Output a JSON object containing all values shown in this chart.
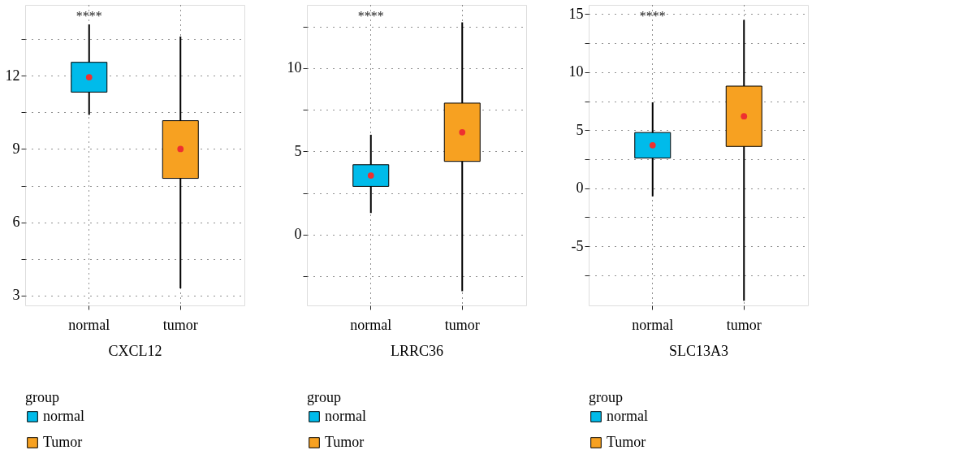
{
  "chart_data": [
    {
      "type": "box",
      "xlabel": "CXCL12",
      "categories": [
        "normal",
        "tumor"
      ],
      "ylim": [
        2.6,
        14.9
      ],
      "yticks": [
        3,
        {
          "value": 4.5,
          "label": null
        },
        6,
        {
          "value": 7.5,
          "label": null
        },
        9,
        {
          "value": 10.5,
          "label": null
        },
        12,
        {
          "value": 13.5,
          "label": null
        }
      ],
      "grid": true,
      "legend": "bottom",
      "legend_title": "group",
      "annotations": [
        "****"
      ],
      "series": [
        {
          "name": "normal",
          "color": "#00bbea",
          "x": [
            "normal"
          ],
          "boxes": [
            {
              "low": 10.4,
              "q1": 11.33,
              "median": 11.94,
              "q3": 12.55,
              "high": 14.1
            }
          ]
        },
        {
          "name": "Tumor",
          "color": "#f7a121",
          "x": [
            "tumor"
          ],
          "boxes": [
            {
              "low": 3.3,
              "q1": 7.8,
              "median": 9.0,
              "q3": 10.16,
              "high": 13.6
            }
          ]
        }
      ]
    },
    {
      "type": "box",
      "xlabel": "LRRC36",
      "categories": [
        "normal",
        "tumor"
      ],
      "ylim": [
        -4.25,
        13.8
      ],
      "yticks": [
        {
          "value": -2.5,
          "label": null
        },
        0,
        {
          "value": 2.5,
          "label": null
        },
        5,
        {
          "value": 7.5,
          "label": null
        },
        10,
        {
          "value": 12.5,
          "label": null
        }
      ],
      "grid": true,
      "legend": "bottom",
      "legend_title": "group",
      "annotations": [
        "****"
      ],
      "series": [
        {
          "name": "normal",
          "color": "#00bbea",
          "x": [
            "normal"
          ],
          "boxes": [
            {
              "low": 1.3,
              "q1": 2.9,
              "median": 3.55,
              "q3": 4.2,
              "high": 6.0
            }
          ]
        },
        {
          "name": "Tumor",
          "color": "#f7a121",
          "x": [
            "tumor"
          ],
          "boxes": [
            {
              "low": -3.4,
              "q1": 4.4,
              "median": 6.15,
              "q3": 7.9,
              "high": 12.75
            }
          ]
        }
      ]
    },
    {
      "type": "box",
      "xlabel": "SLC13A3",
      "categories": [
        "normal",
        "tumor"
      ],
      "ylim": [
        -10.1,
        15.8
      ],
      "yticks": [
        {
          "value": -7.5,
          "label": null
        },
        -5,
        {
          "value": -2.5,
          "label": null
        },
        0,
        {
          "value": 2.5,
          "label": null
        },
        5,
        {
          "value": 7.5,
          "label": null
        },
        10,
        {
          "value": 12.5,
          "label": null
        },
        15
      ],
      "grid": true,
      "legend": "bottom",
      "legend_title": "group",
      "annotations": [
        "****"
      ],
      "series": [
        {
          "name": "normal",
          "color": "#00bbea",
          "x": [
            "normal"
          ],
          "boxes": [
            {
              "low": -0.7,
              "q1": 2.6,
              "median": 3.7,
              "q3": 4.8,
              "high": 7.4
            }
          ]
        },
        {
          "name": "Tumor",
          "color": "#f7a121",
          "x": [
            "tumor"
          ],
          "boxes": [
            {
              "low": -9.7,
              "q1": 3.6,
              "median": 6.2,
              "q3": 8.8,
              "high": 14.5
            }
          ]
        }
      ]
    }
  ]
}
